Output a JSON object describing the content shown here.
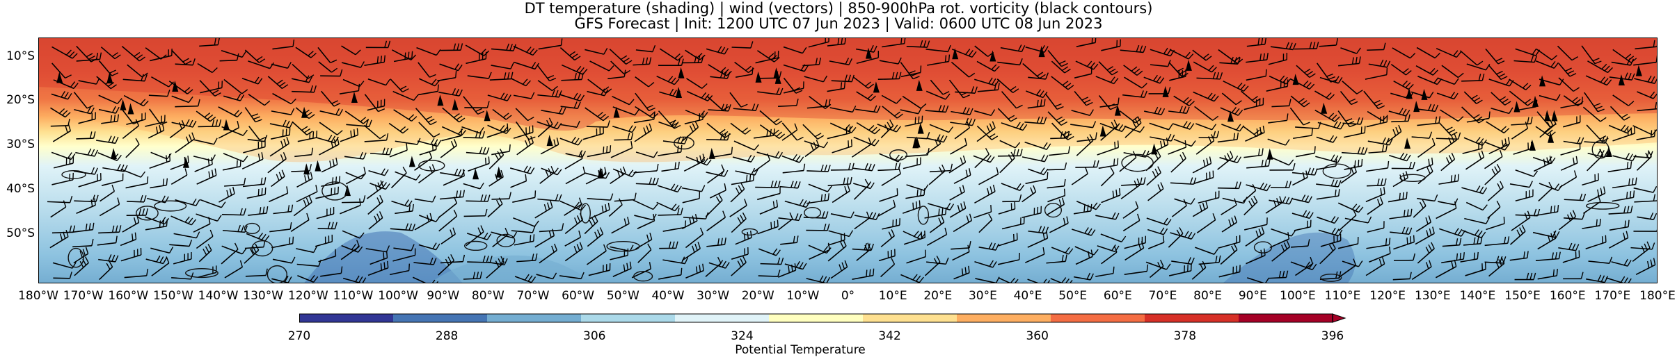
{
  "title": {
    "line1": "DT temperature (shading) | wind (vectors) | 850-900hPa rot. vorticity (black contours)",
    "line2": "GFS Forecast | Init: 1200 UTC 07 Jun 2023 | Valid: 0600 UTC 08 Jun 2023"
  },
  "map": {
    "lat_labels": [
      "10°S",
      "20°S",
      "30°S",
      "40°S",
      "50°S"
    ],
    "lon_labels": [
      "180°W",
      "170°W",
      "160°W",
      "150°W",
      "140°W",
      "130°W",
      "120°W",
      "110°W",
      "100°W",
      "90°W",
      "80°W",
      "70°W",
      "60°W",
      "50°W",
      "40°W",
      "30°W",
      "20°W",
      "10°W",
      "0°",
      "10°E",
      "20°E",
      "30°E",
      "40°E",
      "50°E",
      "60°E",
      "70°E",
      "80°E",
      "90°E",
      "100°E",
      "110°E",
      "120°E",
      "130°E",
      "140°E",
      "150°E",
      "160°E",
      "170°E",
      "180°E"
    ]
  },
  "colorbar": {
    "label": "Potential Temperature",
    "ticks": [
      "270",
      "288",
      "306",
      "324",
      "342",
      "360",
      "378",
      "396"
    ],
    "colors": [
      "#313695",
      "#4575b4",
      "#74add1",
      "#abd9e9",
      "#e0f3f8",
      "#ffffbf",
      "#fee090",
      "#fdae61",
      "#f46d43",
      "#d73027",
      "#a50026"
    ]
  }
}
